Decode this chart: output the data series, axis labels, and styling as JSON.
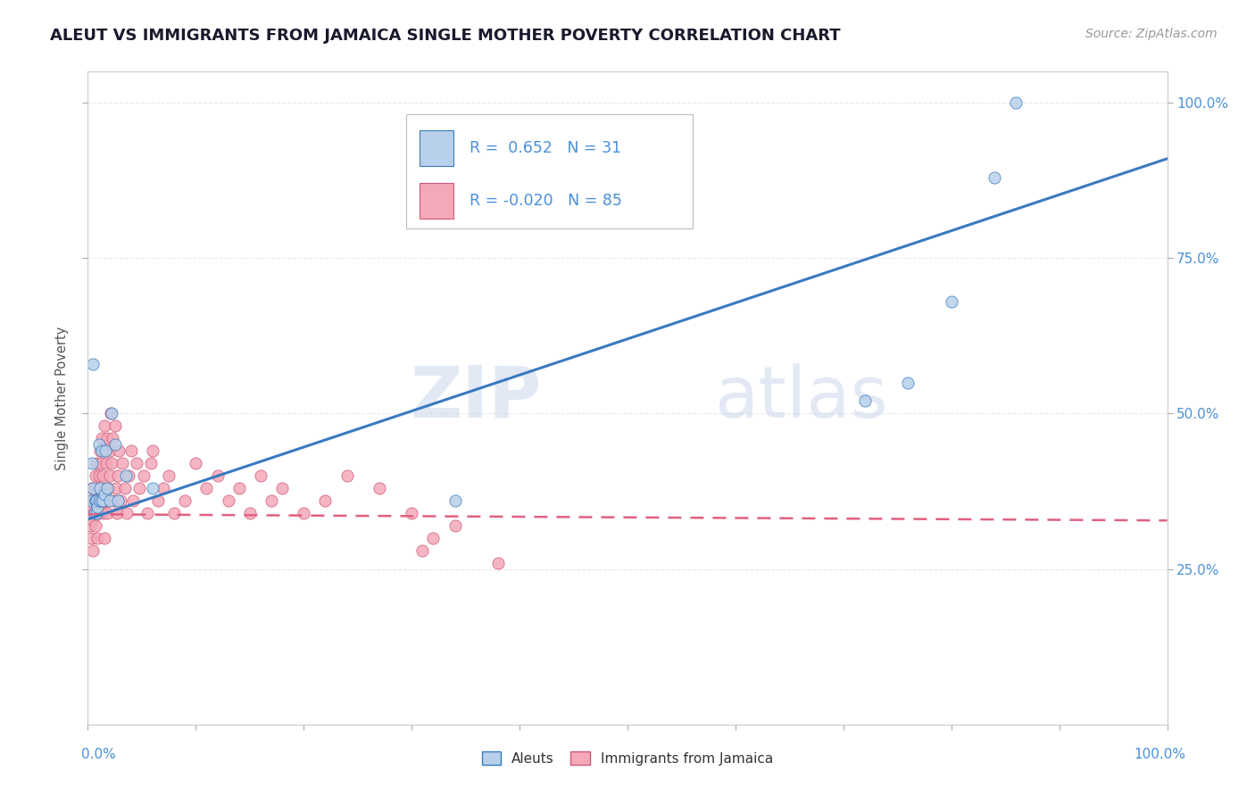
{
  "title": "ALEUT VS IMMIGRANTS FROM JAMAICA SINGLE MOTHER POVERTY CORRELATION CHART",
  "source": "Source: ZipAtlas.com",
  "ylabel": "Single Mother Poverty",
  "legend_label1": "Aleuts",
  "legend_label2": "Immigrants from Jamaica",
  "r1": 0.652,
  "n1": 31,
  "r2": -0.02,
  "n2": 85,
  "aleut_color": "#b8d0ea",
  "jamaica_color": "#f4a8b8",
  "aleut_line_color": "#3a7abf",
  "jamaica_line_color": "#e06080",
  "aleut_x": [
    0.003,
    0.004,
    0.005,
    0.005,
    0.006,
    0.007,
    0.007,
    0.008,
    0.008,
    0.009,
    0.01,
    0.01,
    0.011,
    0.012,
    0.013,
    0.014,
    0.015,
    0.016,
    0.018,
    0.02,
    0.022,
    0.025,
    0.028,
    0.035,
    0.06,
    0.34,
    0.72,
    0.76,
    0.8,
    0.84,
    0.86
  ],
  "aleut_y": [
    0.36,
    0.42,
    0.38,
    0.58,
    0.34,
    0.36,
    0.36,
    0.34,
    0.36,
    0.35,
    0.36,
    0.45,
    0.38,
    0.36,
    0.44,
    0.36,
    0.37,
    0.44,
    0.38,
    0.36,
    0.5,
    0.45,
    0.36,
    0.4,
    0.38,
    0.36,
    0.52,
    0.55,
    0.68,
    0.88,
    1.0
  ],
  "jamaica_x": [
    0.001,
    0.002,
    0.002,
    0.003,
    0.003,
    0.004,
    0.004,
    0.005,
    0.005,
    0.006,
    0.006,
    0.007,
    0.007,
    0.008,
    0.008,
    0.009,
    0.009,
    0.01,
    0.01,
    0.01,
    0.011,
    0.011,
    0.012,
    0.012,
    0.013,
    0.013,
    0.014,
    0.014,
    0.015,
    0.015,
    0.016,
    0.016,
    0.017,
    0.017,
    0.018,
    0.018,
    0.019,
    0.019,
    0.02,
    0.02,
    0.021,
    0.022,
    0.023,
    0.024,
    0.025,
    0.026,
    0.027,
    0.028,
    0.029,
    0.03,
    0.032,
    0.034,
    0.036,
    0.038,
    0.04,
    0.042,
    0.045,
    0.048,
    0.052,
    0.055,
    0.058,
    0.06,
    0.065,
    0.07,
    0.075,
    0.08,
    0.09,
    0.1,
    0.11,
    0.12,
    0.13,
    0.14,
    0.15,
    0.16,
    0.17,
    0.18,
    0.2,
    0.22,
    0.24,
    0.27,
    0.3,
    0.31,
    0.32,
    0.34,
    0.38
  ],
  "jamaica_y": [
    0.34,
    0.32,
    0.35,
    0.36,
    0.3,
    0.33,
    0.38,
    0.35,
    0.28,
    0.34,
    0.36,
    0.4,
    0.32,
    0.38,
    0.42,
    0.35,
    0.3,
    0.34,
    0.36,
    0.4,
    0.38,
    0.44,
    0.42,
    0.35,
    0.46,
    0.36,
    0.4,
    0.34,
    0.48,
    0.3,
    0.44,
    0.36,
    0.38,
    0.42,
    0.34,
    0.46,
    0.38,
    0.36,
    0.4,
    0.44,
    0.5,
    0.42,
    0.46,
    0.36,
    0.48,
    0.38,
    0.34,
    0.4,
    0.44,
    0.36,
    0.42,
    0.38,
    0.34,
    0.4,
    0.44,
    0.36,
    0.42,
    0.38,
    0.4,
    0.34,
    0.42,
    0.44,
    0.36,
    0.38,
    0.4,
    0.34,
    0.36,
    0.42,
    0.38,
    0.4,
    0.36,
    0.38,
    0.34,
    0.4,
    0.36,
    0.38,
    0.34,
    0.36,
    0.4,
    0.38,
    0.34,
    0.28,
    0.3,
    0.32,
    0.26
  ],
  "xlim": [
    0.0,
    1.0
  ],
  "ylim": [
    0.0,
    1.05
  ],
  "yticks": [
    0.25,
    0.5,
    0.75,
    1.0
  ],
  "ytick_labels": [
    "25.0%",
    "50.0%",
    "75.0%",
    "100.0%"
  ],
  "grid_color": "#e8e8e8",
  "spine_color": "#cccccc",
  "tick_color": "#4a90d9",
  "watermark1": "ZIP",
  "watermark2": "atlas",
  "title_color": "#1a1a2e",
  "title_fontsize": 13,
  "source_color": "#999999",
  "ylabel_color": "#555555"
}
